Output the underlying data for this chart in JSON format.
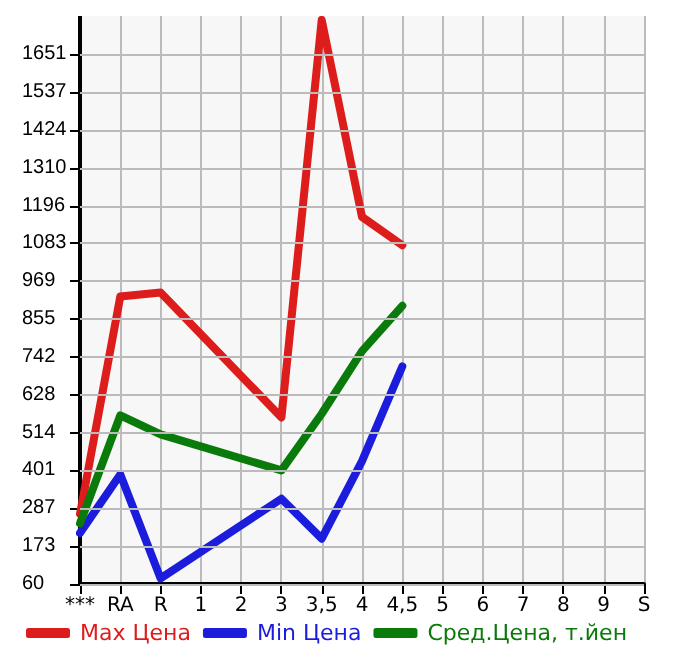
{
  "chart_data": {
    "type": "line",
    "categories": [
      "***",
      "RA",
      "R",
      "1",
      "2",
      "3",
      "3,5",
      "4",
      "4,5",
      "5",
      "6",
      "7",
      "8",
      "9",
      "S"
    ],
    "series": [
      {
        "name": "Max Цена",
        "color": "#dd1c1c",
        "values": [
          270,
          923,
          935,
          null,
          null,
          560,
          1753,
          1162,
          1077,
          null,
          null,
          null,
          null,
          null,
          null
        ]
      },
      {
        "name": "Min Цена",
        "color": "#1c1cdd",
        "values": [
          213,
          389,
          77,
          null,
          null,
          316,
          196,
          429,
          713,
          null,
          null,
          null,
          null,
          null,
          null
        ]
      },
      {
        "name": "Сред.Цена, т.йен",
        "color": "#0a7a0a",
        "values": [
          242,
          566,
          509,
          null,
          null,
          401,
          571,
          759,
          895,
          null,
          null,
          null,
          null,
          null,
          null
        ]
      }
    ],
    "ylim": [
      60,
      1765
    ],
    "yticks": [
      60,
      173,
      287,
      401,
      514,
      628,
      742,
      855,
      969,
      1083,
      1196,
      1310,
      1424,
      1537,
      1651
    ],
    "grid": true,
    "legend": "bottom",
    "marker": "none",
    "line_style": "solid"
  }
}
